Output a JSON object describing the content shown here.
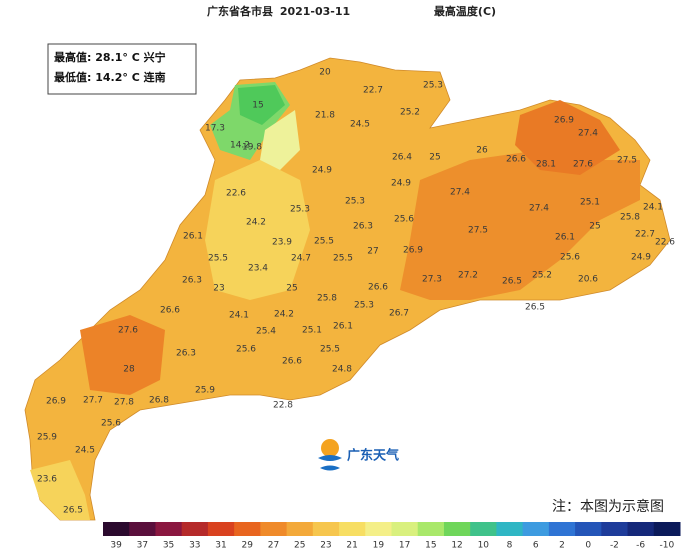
{
  "header": {
    "region": "广东省各市县",
    "date": "2021-03-11",
    "element": "最高温度(C)"
  },
  "summary": {
    "max": "最高值: 28.1° C 兴宁",
    "min": "最低值: 14.2° C 连南"
  },
  "labels": [
    20,
    22.7,
    25.3,
    15,
    21.8,
    24.5,
    25.2,
    26.9,
    27.4,
    17.3,
    14.2,
    19.8,
    26.4,
    25,
    26,
    26.6,
    28.1,
    27.6,
    27.5,
    24.9,
    24.9,
    22.6,
    27.4,
    25.3,
    25.1,
    25.3,
    25.8,
    24.1,
    24.2,
    25.6,
    26.3,
    27.4,
    27.5,
    26.1,
    25,
    22.7,
    22.6,
    26.1,
    23.9,
    25.5,
    26.9,
    27,
    25.5,
    24.7,
    25.5,
    25.6,
    24.9,
    23.4,
    26.3,
    23,
    25,
    26.6,
    27.3,
    27.2,
    26.5,
    25.2,
    20.6,
    25.8,
    25.3,
    26.6,
    24.1,
    24.2,
    26.7,
    26.5,
    27.6,
    25.4,
    25.1,
    26.1,
    26.3,
    25.6,
    25.5,
    26.6,
    28,
    24.8,
    25.9,
    26.9,
    27.7,
    27.8,
    26.8,
    22.8,
    25.6,
    25.9,
    24.5,
    23.6,
    26.5
  ],
  "logo": "广东天气",
  "note": "注：本图为示意图",
  "legend": {
    "ticks": [
      39,
      37,
      35,
      33,
      31,
      29,
      27,
      25,
      23,
      21,
      19,
      17,
      15,
      12,
      10,
      8,
      6,
      2,
      0,
      -2,
      -6,
      -10
    ],
    "colors": [
      "#2b0a2e",
      "#5a0f3c",
      "#8a1740",
      "#b52a2a",
      "#d9421f",
      "#e8651f",
      "#ef8a2a",
      "#f3a93a",
      "#f6c64e",
      "#f7de63",
      "#f4ef88",
      "#d9f07e",
      "#a9e86a",
      "#6fd65a",
      "#3fc28a",
      "#2fb6c4",
      "#3d9be0",
      "#2f74d4",
      "#2455b8",
      "#1e3c9a",
      "#15287a",
      "#0b1a5a"
    ]
  }
}
